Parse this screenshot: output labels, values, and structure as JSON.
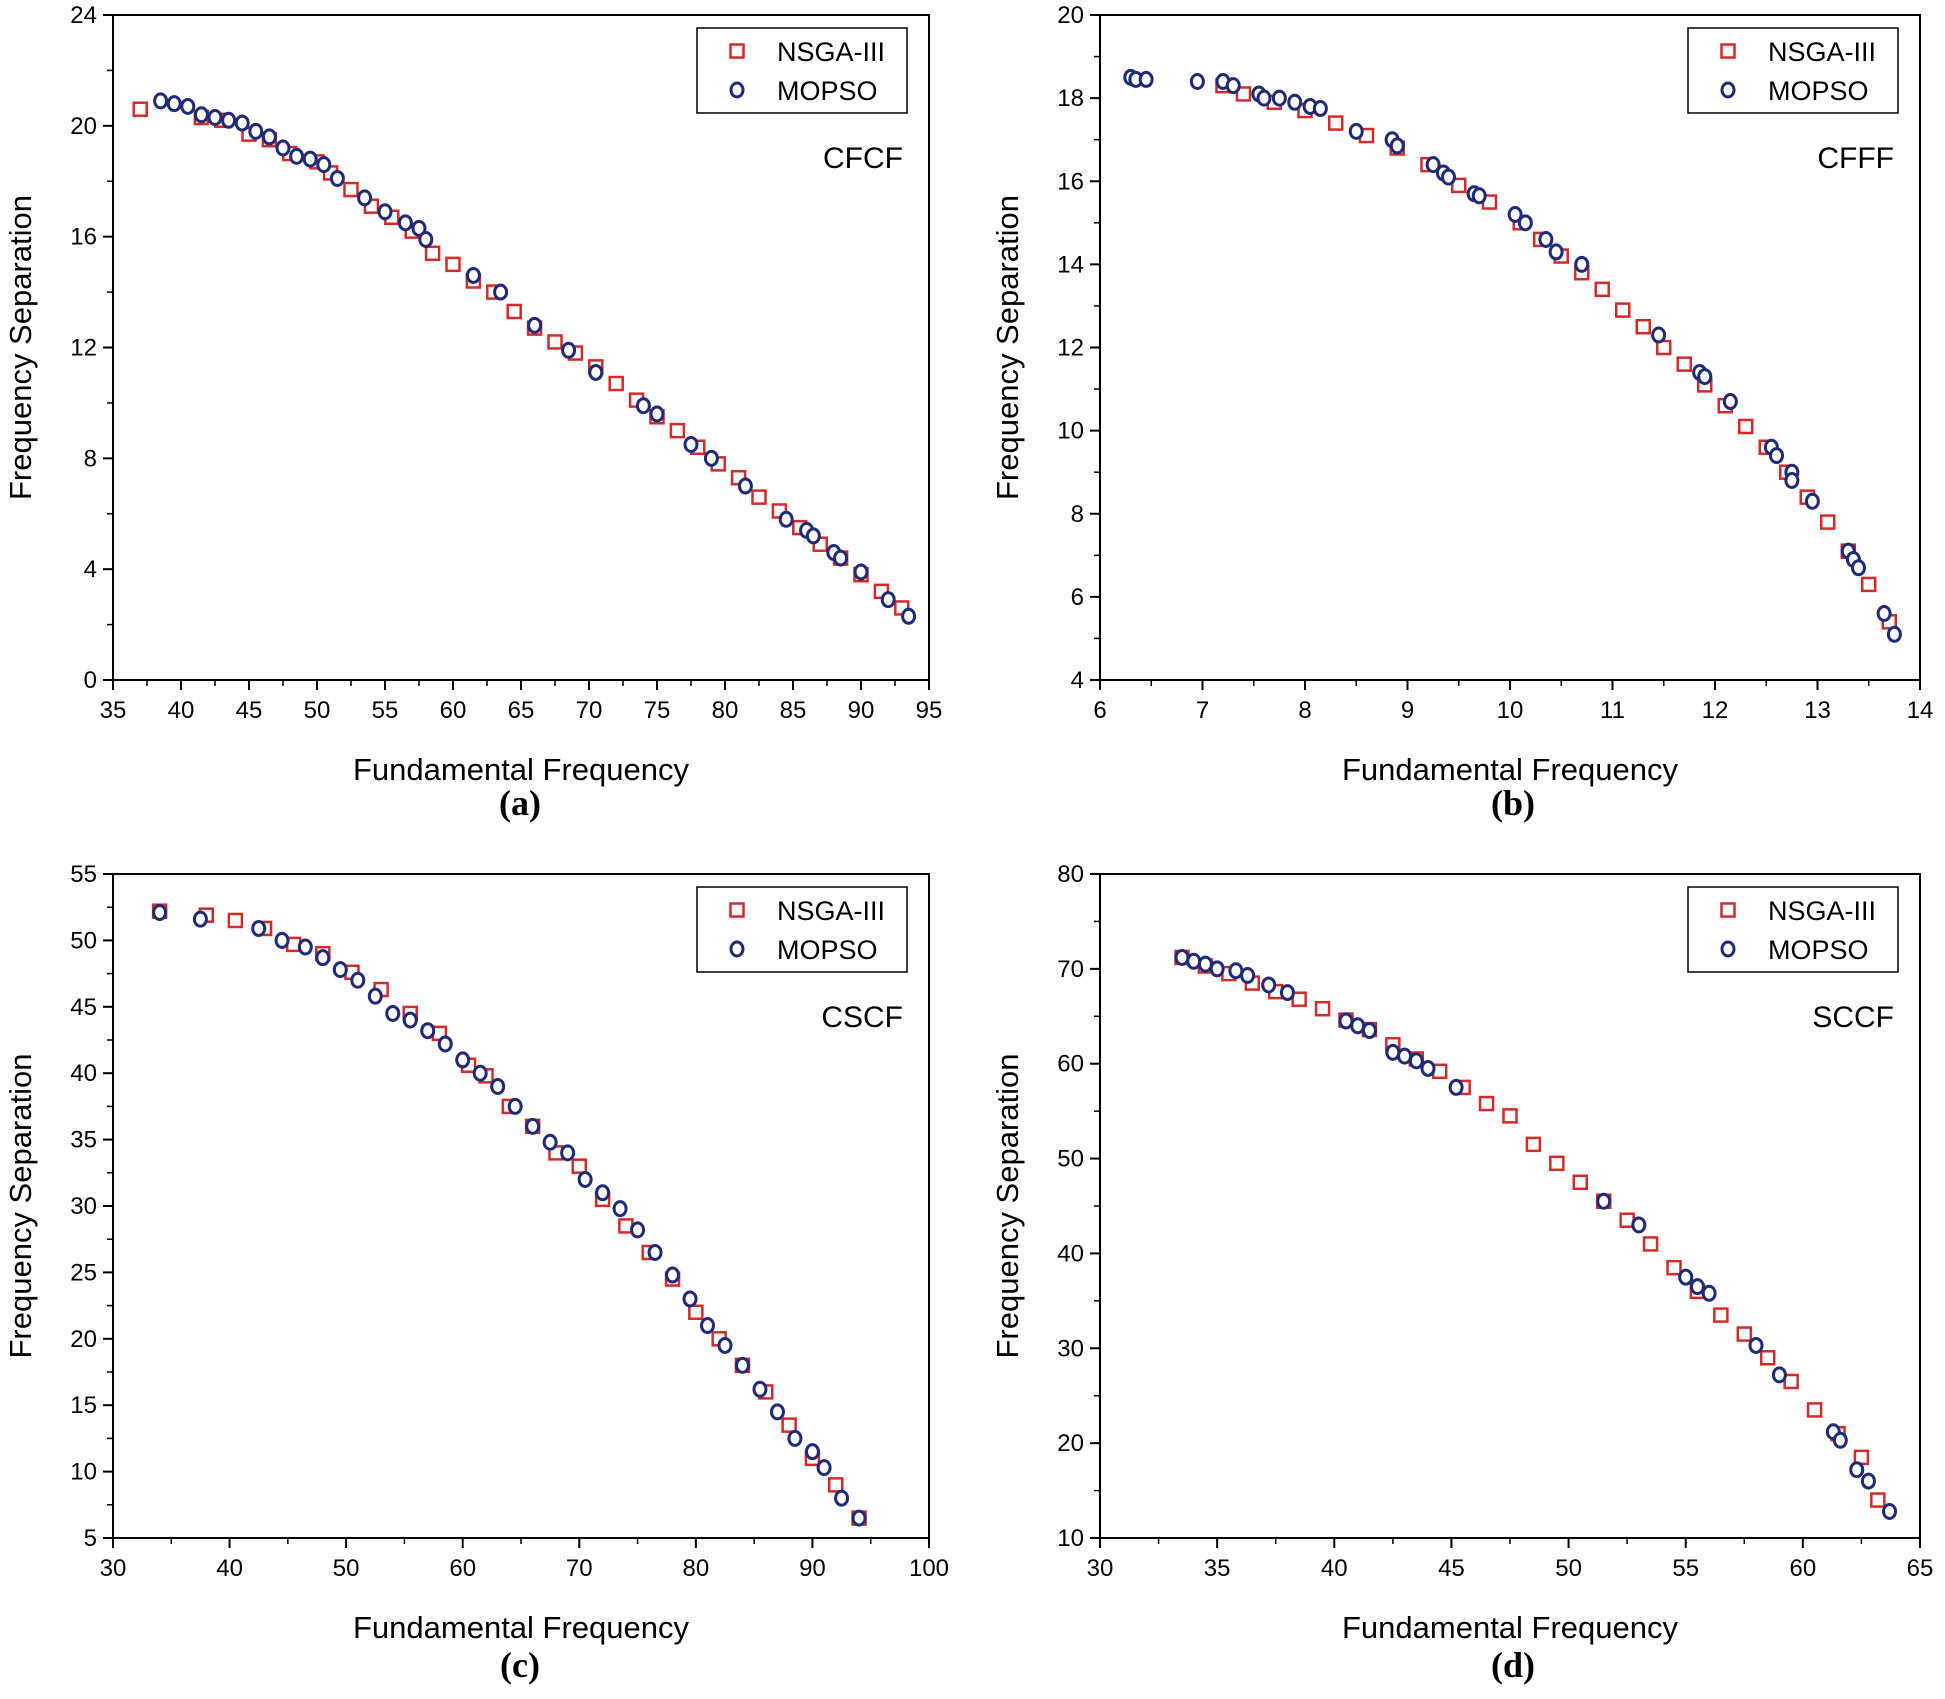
{
  "figure": {
    "colors": {
      "nsga": "#d42a2a",
      "mopso": "#1f2a78",
      "axis": "#000000"
    }
  },
  "chart_data": [
    {
      "type": "scatter",
      "panel_label": "(a)",
      "annotation": "CFCF",
      "xlabel": "Fundamental Frequency",
      "ylabel": "Frequency Separation",
      "xlim": [
        35,
        95
      ],
      "ylim": [
        0,
        24
      ],
      "xticks": [
        35,
        40,
        45,
        50,
        55,
        60,
        65,
        70,
        75,
        80,
        85,
        90,
        95
      ],
      "yticks": [
        0,
        4,
        8,
        12,
        16,
        20,
        24
      ],
      "legend": {
        "position": "top-right",
        "entries": [
          "NSGA-III",
          "MOPSO"
        ]
      },
      "series": [
        {
          "name": "NSGA-III",
          "marker": "square",
          "x": [
            37,
            41.5,
            43,
            45,
            46.5,
            48,
            50,
            51,
            52.5,
            54,
            55.5,
            57,
            58.5,
            60,
            61.5,
            63,
            64.5,
            66,
            67.5,
            69,
            70.5,
            72,
            73.5,
            75,
            76.5,
            78,
            79.5,
            81,
            82.5,
            84,
            85.5,
            87,
            88.5,
            90,
            91.5,
            93
          ],
          "y": [
            20.6,
            20.3,
            20.2,
            19.7,
            19.5,
            19,
            18.7,
            18.3,
            17.7,
            17.1,
            16.7,
            16.2,
            15.4,
            15,
            14.4,
            14,
            13.3,
            12.7,
            12.2,
            11.8,
            11.3,
            10.7,
            10.1,
            9.5,
            9,
            8.4,
            7.8,
            7.3,
            6.6,
            6.1,
            5.5,
            4.9,
            4.4,
            3.8,
            3.2,
            2.6
          ]
        },
        {
          "name": "MOPSO",
          "marker": "circle",
          "x": [
            38.5,
            39.5,
            40.5,
            41.5,
            42.5,
            43.5,
            44.5,
            45.5,
            46.5,
            47.5,
            48.5,
            49.5,
            50.5,
            51.5,
            53.5,
            55,
            56.5,
            57.5,
            58,
            61.5,
            63.5,
            66,
            68.5,
            70.5,
            74,
            75,
            77.5,
            79,
            81.5,
            84.5,
            86,
            86.5,
            88,
            88.5,
            90,
            92,
            93.5
          ],
          "y": [
            20.9,
            20.8,
            20.7,
            20.4,
            20.3,
            20.2,
            20.1,
            19.8,
            19.6,
            19.2,
            18.9,
            18.8,
            18.6,
            18.1,
            17.4,
            16.9,
            16.5,
            16.3,
            15.9,
            14.6,
            14,
            12.8,
            11.9,
            11.1,
            9.9,
            9.6,
            8.5,
            8,
            7,
            5.8,
            5.4,
            5.2,
            4.6,
            4.4,
            3.9,
            2.9,
            2.3
          ]
        }
      ]
    },
    {
      "type": "scatter",
      "panel_label": "(b)",
      "annotation": "CFFF",
      "xlabel": "Fundamental Frequency",
      "ylabel": "Frequency Separation",
      "xlim": [
        6,
        14
      ],
      "ylim": [
        4,
        20
      ],
      "xticks": [
        6,
        7,
        8,
        9,
        10,
        11,
        12,
        13,
        14
      ],
      "yticks": [
        4,
        6,
        8,
        10,
        12,
        14,
        16,
        18,
        20
      ],
      "legend": {
        "position": "top-right",
        "entries": [
          "NSGA-III",
          "MOPSO"
        ]
      },
      "series": [
        {
          "name": "NSGA-III",
          "marker": "square",
          "x": [
            7.2,
            7.4,
            7.7,
            8,
            8.3,
            8.6,
            8.9,
            9.2,
            9.5,
            9.8,
            10.1,
            10.3,
            10.5,
            10.7,
            10.9,
            11.1,
            11.3,
            11.5,
            11.7,
            11.9,
            12.1,
            12.3,
            12.5,
            12.7,
            12.9,
            13.1,
            13.3,
            13.5,
            13.7
          ],
          "y": [
            18.3,
            18.1,
            17.9,
            17.7,
            17.4,
            17.1,
            16.8,
            16.4,
            15.9,
            15.5,
            15,
            14.6,
            14.2,
            13.8,
            13.4,
            12.9,
            12.5,
            12,
            11.6,
            11.1,
            10.6,
            10.1,
            9.6,
            9,
            8.4,
            7.8,
            7.1,
            6.3,
            5.4
          ]
        },
        {
          "name": "MOPSO",
          "marker": "circle",
          "x": [
            6.3,
            6.35,
            6.45,
            6.95,
            7.2,
            7.3,
            7.55,
            7.6,
            7.75,
            7.9,
            8.05,
            8.15,
            8.5,
            8.85,
            8.9,
            9.25,
            9.35,
            9.4,
            9.65,
            9.7,
            10.05,
            10.15,
            10.35,
            10.45,
            10.7,
            11.45,
            11.85,
            11.9,
            12.15,
            12.55,
            12.6,
            12.75,
            12.75,
            12.95,
            13.3,
            13.35,
            13.4,
            13.65,
            13.75
          ],
          "y": [
            18.5,
            18.45,
            18.45,
            18.4,
            18.4,
            18.3,
            18.1,
            18,
            18,
            17.9,
            17.8,
            17.75,
            17.2,
            17,
            16.85,
            16.4,
            16.2,
            16.1,
            15.7,
            15.65,
            15.2,
            15,
            14.6,
            14.3,
            14,
            12.3,
            11.4,
            11.3,
            10.7,
            9.6,
            9.4,
            9,
            8.8,
            8.3,
            7.1,
            6.9,
            6.7,
            5.6,
            5.1
          ]
        }
      ]
    },
    {
      "type": "scatter",
      "panel_label": "(c)",
      "annotation": "CSCF",
      "xlabel": "Fundamental Frequency",
      "ylabel": "Frequency Separation",
      "xlim": [
        30,
        100
      ],
      "ylim": [
        5,
        55
      ],
      "xticks": [
        30,
        40,
        50,
        60,
        70,
        80,
        90,
        100
      ],
      "yticks": [
        5,
        10,
        15,
        20,
        25,
        30,
        35,
        40,
        45,
        50,
        55
      ],
      "legend": {
        "position": "top-right",
        "entries": [
          "NSGA-III",
          "MOPSO"
        ]
      },
      "series": [
        {
          "name": "NSGA-III",
          "marker": "square",
          "x": [
            34,
            38,
            40.5,
            43,
            45.5,
            48,
            50.5,
            53,
            55.5,
            58,
            60.5,
            62,
            64,
            66,
            68,
            70,
            72,
            74,
            76,
            78,
            80,
            82,
            84,
            86,
            88,
            90,
            92,
            94
          ],
          "y": [
            52.2,
            51.9,
            51.5,
            50.9,
            49.7,
            49,
            47.6,
            46.3,
            44.5,
            43,
            40.6,
            39.8,
            37.5,
            36,
            34,
            33,
            30.5,
            28.5,
            26.5,
            24.5,
            22,
            20,
            18,
            16,
            13.5,
            11,
            9,
            6.5
          ]
        },
        {
          "name": "MOPSO",
          "marker": "circle",
          "x": [
            34,
            37.5,
            42.5,
            44.5,
            46.5,
            48,
            49.5,
            51,
            52.5,
            54,
            55.5,
            57,
            58.5,
            60,
            61.5,
            63,
            64.5,
            66,
            67.5,
            69,
            70.5,
            72,
            73.5,
            75,
            76.5,
            78,
            79.5,
            81,
            82.5,
            84,
            85.5,
            87,
            88.5,
            90,
            91,
            92.5,
            94
          ],
          "y": [
            52.1,
            51.6,
            50.9,
            50,
            49.5,
            48.7,
            47.8,
            47,
            45.8,
            44.5,
            44,
            43.2,
            42.2,
            41,
            40,
            39,
            37.5,
            36,
            34.8,
            34,
            32,
            31,
            29.8,
            28.2,
            26.5,
            24.8,
            23,
            21,
            19.5,
            18,
            16.2,
            14.5,
            12.5,
            11.5,
            10.3,
            8,
            6.5
          ]
        }
      ]
    },
    {
      "type": "scatter",
      "panel_label": "(d)",
      "annotation": "SCCF",
      "xlabel": "Fundamental Frequency",
      "ylabel": "Frequency Separation",
      "xlim": [
        30,
        65
      ],
      "ylim": [
        10,
        80
      ],
      "xticks": [
        30,
        35,
        40,
        45,
        50,
        55,
        60,
        65
      ],
      "yticks": [
        10,
        20,
        30,
        40,
        50,
        60,
        70,
        80
      ],
      "legend": {
        "position": "top-right",
        "entries": [
          "NSGA-III",
          "MOPSO"
        ]
      },
      "series": [
        {
          "name": "NSGA-III",
          "marker": "square",
          "x": [
            33.5,
            34.5,
            35.5,
            36.5,
            37.5,
            38.5,
            39.5,
            40.5,
            41.5,
            42.5,
            43.5,
            44.5,
            45.5,
            46.5,
            47.5,
            48.5,
            49.5,
            50.5,
            51.5,
            52.5,
            53.5,
            54.5,
            55.5,
            56.5,
            57.5,
            58.5,
            59.5,
            60.5,
            61.5,
            62.5,
            63.2
          ],
          "y": [
            71.2,
            70.3,
            69.5,
            68.5,
            67.6,
            66.8,
            65.8,
            64.6,
            63.6,
            62,
            60.5,
            59.2,
            57.5,
            55.8,
            54.5,
            51.5,
            49.5,
            47.5,
            45.5,
            43.5,
            41,
            38.5,
            36,
            33.5,
            31.5,
            29,
            26.5,
            23.5,
            21,
            18.5,
            14
          ]
        },
        {
          "name": "MOPSO",
          "marker": "circle",
          "x": [
            33.5,
            34,
            34.5,
            35,
            35.8,
            36.3,
            37.2,
            38,
            40.5,
            41,
            41.5,
            42.5,
            43,
            43.5,
            44,
            45.2,
            51.5,
            53,
            55,
            55.5,
            56,
            58,
            59,
            61.3,
            61.6,
            62.3,
            62.8,
            63.7
          ],
          "y": [
            71.2,
            70.8,
            70.5,
            70,
            69.8,
            69.3,
            68.3,
            67.5,
            64.5,
            64,
            63.5,
            61.2,
            60.8,
            60.3,
            59.5,
            57.5,
            45.5,
            43,
            37.5,
            36.5,
            35.8,
            30.3,
            27.2,
            21.2,
            20.3,
            17.2,
            16,
            12.8
          ]
        }
      ]
    }
  ]
}
